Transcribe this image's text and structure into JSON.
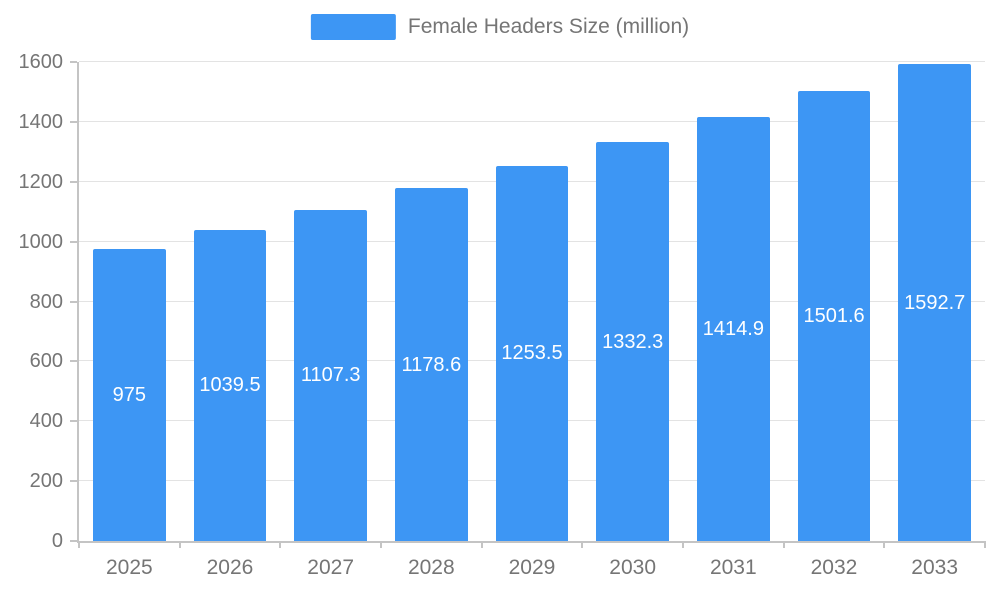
{
  "legend": {
    "label": "Female Headers Size (million)"
  },
  "colors": {
    "bar": "#3d96f4",
    "grid": "#e3e3e3",
    "axis": "#c4c4c4",
    "tick_text": "#757575",
    "value_text": "#ffffff"
  },
  "chart_data": {
    "type": "bar",
    "title": "Female Headers Size (million)",
    "categories": [
      "2025",
      "2026",
      "2027",
      "2028",
      "2029",
      "2030",
      "2031",
      "2032",
      "2033"
    ],
    "values": [
      975,
      1039.5,
      1107.3,
      1178.6,
      1253.5,
      1332.3,
      1414.9,
      1501.6,
      1592.7
    ],
    "value_labels": [
      "975",
      "1039.5",
      "1107.3",
      "1178.6",
      "1253.5",
      "1332.3",
      "1414.9",
      "1501.6",
      "1592.7"
    ],
    "xlabel": "",
    "ylabel": "",
    "ylim": [
      0,
      1600
    ],
    "ytick_step": 200,
    "ytick_labels": [
      "0",
      "200",
      "400",
      "600",
      "800",
      "1000",
      "1200",
      "1400",
      "1600"
    ],
    "grid": true,
    "legend_position": "top-center",
    "bar_color": "#3d96f4",
    "value_label_position": "inside-center"
  }
}
